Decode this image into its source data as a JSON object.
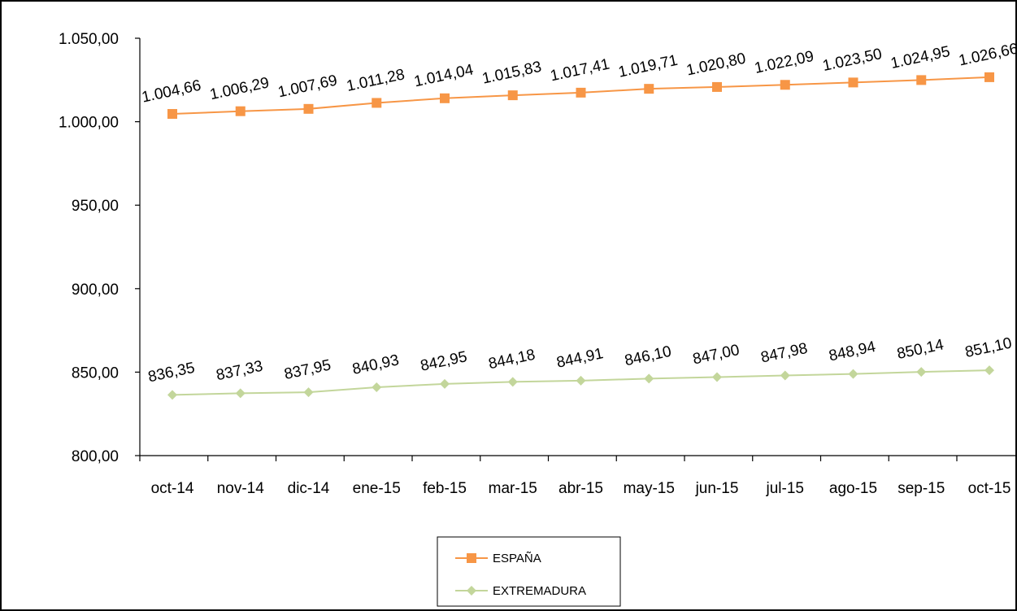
{
  "chart_data": {
    "type": "line",
    "categories": [
      "oct-14",
      "nov-14",
      "dic-14",
      "ene-15",
      "feb-15",
      "mar-15",
      "abr-15",
      "may-15",
      "jun-15",
      "jul-15",
      "ago-15",
      "sep-15",
      "oct-15"
    ],
    "series": [
      {
        "name": "ESPAÑA",
        "color": "#f79646",
        "marker": "square",
        "values": [
          1004.66,
          1006.29,
          1007.69,
          1011.28,
          1014.04,
          1015.83,
          1017.41,
          1019.71,
          1020.8,
          1022.09,
          1023.5,
          1024.95,
          1026.66
        ],
        "value_labels": [
          "1.004,66",
          "1.006,29",
          "1.007,69",
          "1.011,28",
          "1.014,04",
          "1.015,83",
          "1.017,41",
          "1.019,71",
          "1.020,80",
          "1.022,09",
          "1.023,50",
          "1.024,95",
          "1.026,66"
        ]
      },
      {
        "name": "EXTREMADURA",
        "color": "#c3d69b",
        "marker": "diamond",
        "values": [
          836.35,
          837.33,
          837.95,
          840.93,
          842.95,
          844.18,
          844.91,
          846.1,
          847.0,
          847.98,
          848.94,
          850.14,
          851.1
        ],
        "value_labels": [
          "836,35",
          "837,33",
          "837,95",
          "840,93",
          "842,95",
          "844,18",
          "844,91",
          "846,10",
          "847,00",
          "847,98",
          "848,94",
          "850,14",
          "851,10"
        ]
      }
    ],
    "ylim": [
      800,
      1050
    ],
    "yticks": [
      800,
      850,
      900,
      950,
      1000,
      1050
    ],
    "ytick_labels": [
      "800,00",
      "850,00",
      "900,00",
      "950,00",
      "1.000,00",
      "1.050,00"
    ],
    "grid": false,
    "legend_position": "bottom-center",
    "title": "",
    "xlabel": "",
    "ylabel": ""
  }
}
